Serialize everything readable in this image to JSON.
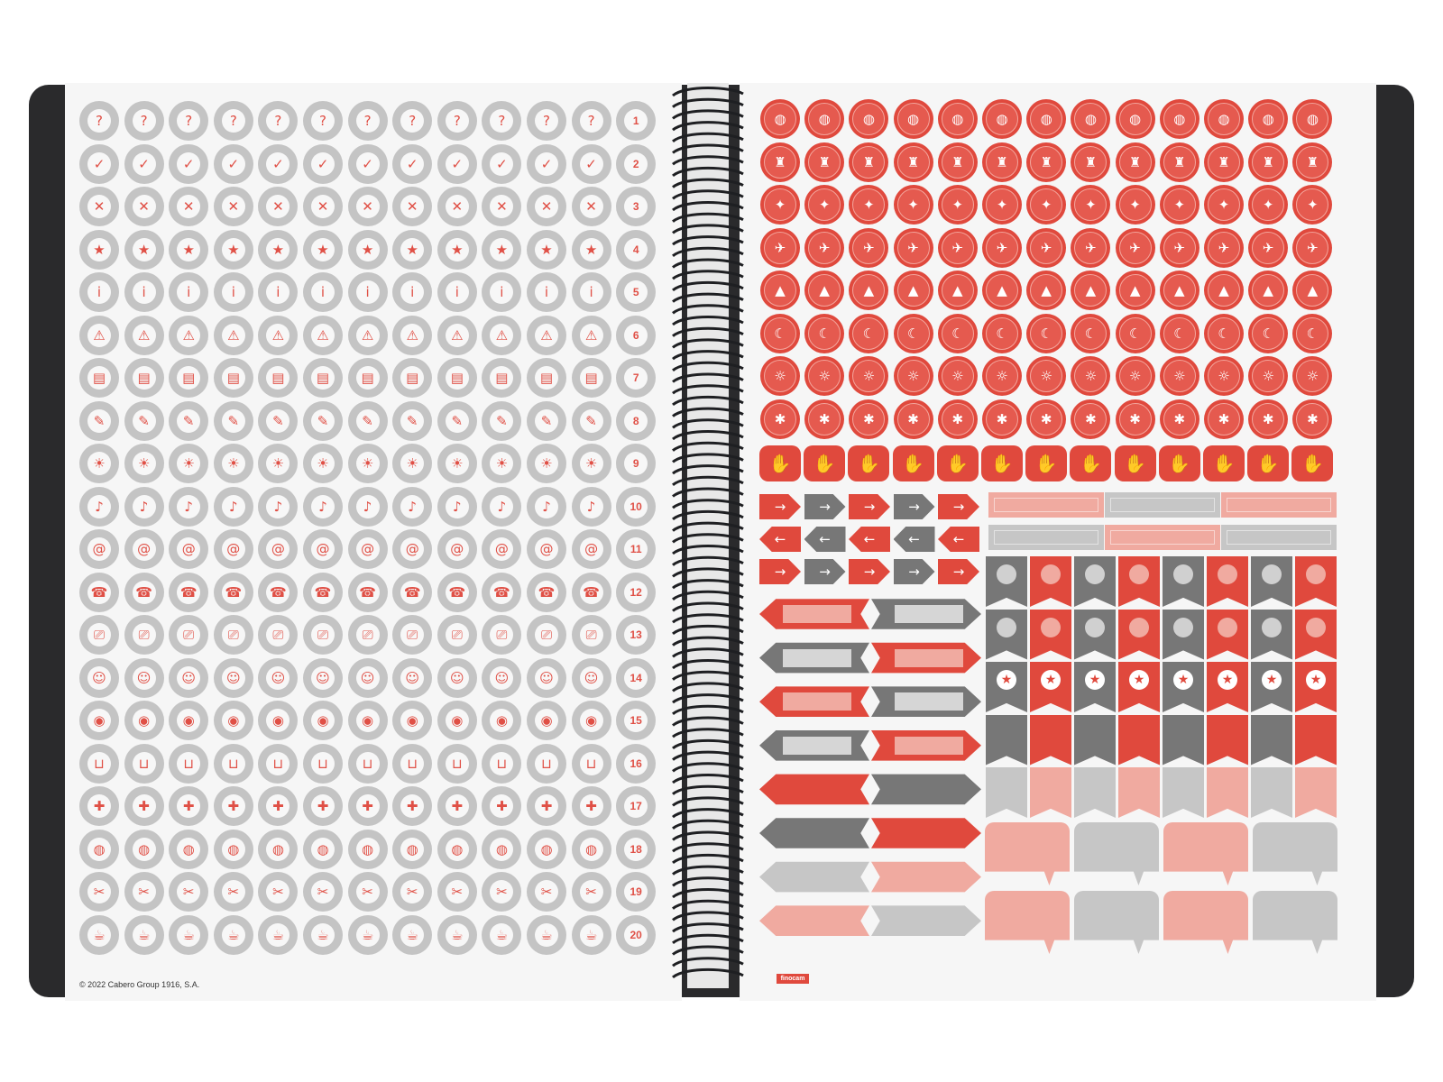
{
  "footer": {
    "copyright": "© 2022 Cabero Group 1916, S.A.",
    "brand": "finocam"
  },
  "left_sheet": {
    "row_numbers": [
      "1",
      "2",
      "3",
      "4",
      "5",
      "6",
      "7",
      "8",
      "9",
      "10",
      "11",
      "12",
      "13",
      "14",
      "15",
      "16",
      "17",
      "18",
      "19",
      "20"
    ],
    "row_icons": [
      [
        "question-icon"
      ],
      [
        "check-icon"
      ],
      [
        "cross-icon"
      ],
      [
        "star-icon"
      ],
      [
        "info-icon"
      ],
      [
        "warning-icon"
      ],
      [
        "notebook-icon",
        "book-icon"
      ],
      [
        "note-icon",
        "graduation-cap-icon"
      ],
      [
        "lightbulb-icon"
      ],
      [
        "bell-icon"
      ],
      [
        "at-icon"
      ],
      [
        "phone-icon"
      ],
      [
        "video-call-icon"
      ],
      [
        "people-icon"
      ],
      [
        "location-pin-icon"
      ],
      [
        "shopping-cart-icon"
      ],
      [
        "medical-cross-icon",
        "tooth-icon",
        "hairdresser-icon"
      ],
      [
        "pot-icon",
        "cleaning-icon",
        "squeegee-icon"
      ],
      [
        "tools-icon",
        "broom-icon",
        "laundry-icon"
      ],
      [
        "coffee-cup-icon"
      ]
    ],
    "row_glyphs": [
      "?",
      "✓",
      "✕",
      "★",
      "i",
      "⚠",
      "▤",
      "✎",
      "☀",
      "♪",
      "@",
      "☎",
      "⎚",
      "☺",
      "◉",
      "⊔",
      "✚",
      "◍",
      "✂",
      "☕"
    ],
    "colors": {
      "circle": "#c4c4c4",
      "accent": "#e05046"
    }
  },
  "right_sheet": {
    "circle_rows": [
      [
        "dinner-plate-icon"
      ],
      [
        "birthday-cake-icon",
        "gifts-icon"
      ],
      [
        "tickets-icon",
        "house-icon",
        "party-popper-icon"
      ],
      [
        "suitcase-icon",
        "airplane-icon",
        "ship-icon"
      ],
      [
        "mountains-icon",
        "beach-icon",
        "trees-icon"
      ],
      [
        "moon-icon",
        "sleep-icon",
        "hotel-icon",
        "music-icon"
      ],
      [
        "sun-icon",
        "cloud-icon",
        "wind-icon",
        "snowflake-icon"
      ],
      [
        "stretching-icon",
        "running-icon",
        "eyes-icon",
        "sneaker-icon",
        "thermometer-icon"
      ]
    ],
    "circle_glyphs": [
      "◍",
      "♜",
      "✦",
      "✈",
      "▲",
      "☾",
      "☼",
      "✱"
    ],
    "thumbs_icon": "thumbs-up-icon",
    "colors": {
      "red": "#e0493d",
      "salmon": "#f0aaa0",
      "grey": "#777777",
      "light_grey": "#c6c6c6"
    }
  }
}
